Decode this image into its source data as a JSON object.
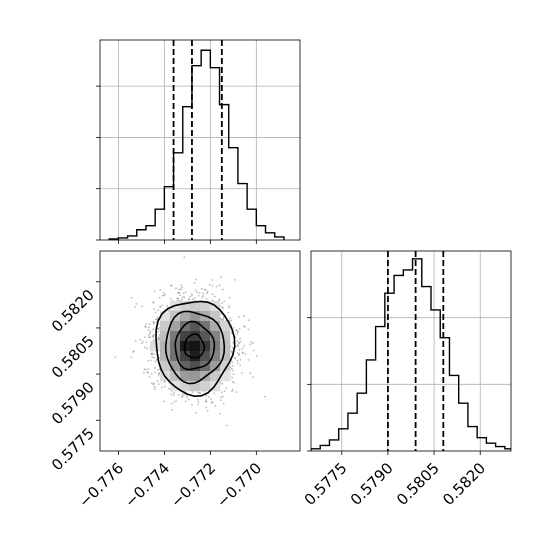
{
  "chart_data": [
    {
      "type": "histogram",
      "variable": "x",
      "xlim": [
        -0.7768,
        -0.7681
      ],
      "bin_width": 0.0004,
      "bins_start": -0.7764,
      "counts": [
        1,
        2,
        4,
        10,
        14,
        30,
        52,
        85,
        130,
        170,
        185,
        168,
        132,
        90,
        55,
        30,
        14,
        7,
        3
      ],
      "ylim": [
        0,
        195
      ],
      "quantiles": [
        -0.7736,
        -0.7728,
        -0.7715
      ],
      "grid": true,
      "xtick_labels_visible": false,
      "ytick_labels_visible": false
    },
    {
      "type": "histogram",
      "variable": "y",
      "xlim": [
        0.5765,
        0.583
      ],
      "bin_width": 0.0003,
      "bins_start": 0.5765,
      "counts": [
        2,
        5,
        10,
        20,
        34,
        52,
        82,
        112,
        142,
        158,
        163,
        173,
        148,
        127,
        102,
        68,
        43,
        22,
        12,
        7,
        4,
        2
      ],
      "ylim": [
        0,
        180
      ],
      "quantiles": [
        0.579,
        0.5799,
        0.5808
      ],
      "grid": true,
      "xticks": [
        0.5775,
        0.579,
        0.5805,
        0.582
      ],
      "xtick_labels": [
        "0.5775",
        "0.5790",
        "0.5805",
        "0.5820"
      ]
    },
    {
      "type": "scatter",
      "subtype": "2d-density-contour",
      "x_variable": "x",
      "y_variable": "y",
      "xlim": [
        -0.7768,
        -0.7681
      ],
      "ylim": [
        0.5765,
        0.583
      ],
      "center": [
        -0.7727,
        0.5799
      ],
      "sigma": [
        0.00085,
        0.00075
      ],
      "contour_levels_sigma": [
        0.5,
        1.0,
        1.5,
        2.0
      ],
      "xticks": [
        -0.776,
        -0.774,
        -0.772,
        -0.77
      ],
      "xtick_labels": [
        "−0.776",
        "−0.774",
        "−0.772",
        "−0.770"
      ],
      "yticks": [
        0.5775,
        0.579,
        0.5805,
        0.582
      ],
      "ytick_labels": [
        "0.5775",
        "0.5790",
        "0.5805",
        "0.5820"
      ]
    }
  ]
}
